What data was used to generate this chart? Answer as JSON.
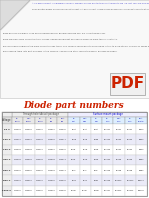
{
  "title": "Diode part numbers",
  "title_color": "#cc2200",
  "title_fontsize": 6.5,
  "header1": "Through hole (Axial) package",
  "header2": "Surface mount package",
  "header1_color": "#444444",
  "header2_color": "#0000cc",
  "voltages": [
    "50 V",
    "100 V",
    "200 V",
    "400 V",
    "600 V",
    "800 V",
    "1000 V"
  ],
  "volt_short": [
    "50V",
    "100V",
    "200V",
    "400V",
    "600V",
    "800V",
    "1000V"
  ],
  "col_labels_line1": [
    "1A,",
    "1.5A,",
    "3A,",
    "6A,",
    "10A,",
    "1A,",
    "1.5A,",
    "3A,",
    "1A,",
    "2.5A,",
    "3A,",
    "10A,"
  ],
  "col_labels_line2": [
    "DO-41",
    "DO-15",
    "DO-27",
    "R-6",
    "R-6",
    "SMA",
    "SMB",
    "SMC",
    "MELF",
    "MELF",
    "MELF",
    "D2-PAK"
  ],
  "rows": [
    [
      "1N4001",
      "1N5391",
      "1N5400",
      "1N4990",
      "1N3070",
      "RS1A",
      "RS2A",
      "RS3A",
      "LL4001",
      "RL1Z1",
      "RL3Z1",
      "MB1S"
    ],
    [
      "1N4002",
      "1N5392",
      "1N5401",
      "1N4991",
      "1N3071",
      "RS1B",
      "RS2B",
      "RS3B",
      "LL4002",
      "RL1Z2",
      "RL3Z2",
      "MB2S"
    ],
    [
      "1N4003",
      "1N5393",
      "1N5402",
      "1N4992",
      "1N3072",
      "RS1D",
      "RS2D",
      "RS3D",
      "LL4003",
      "RL1Z4",
      "RL3Z4",
      "MB4S"
    ],
    [
      "1N4004",
      "1N5394",
      "1N5404",
      "1N4993",
      "1N3073",
      "RS1G",
      "RS2G",
      "RS3G",
      "LL4004",
      "RL1Z6",
      "RL3Z6",
      "MB6S"
    ],
    [
      "1N4005",
      "1N5395",
      "1N5405",
      "1N4994",
      "1N3074",
      "RS1J",
      "RS2J",
      "RS3J",
      "LL4005",
      "RL1Z8",
      "RL3Z8",
      "MB8S"
    ],
    [
      "1N4006",
      "1N5396",
      "1N5406",
      "1N4995",
      "1N3075",
      "RS1K",
      "RS2K",
      "RS3K",
      "LL4006",
      "RL1Z10",
      "RL3Z10",
      "MB10S"
    ],
    [
      "1N4007",
      "1N5397",
      "1N5407",
      "1N4996",
      "1N3076",
      "RS1M",
      "RS2M",
      "RS3M",
      "LL4007",
      "RL1Z12",
      "RL3Z12",
      "MB12S"
    ]
  ],
  "background_color": "#ffffff",
  "text_color": "#555555",
  "text_lines": [
    "It is a basic element in a growing number of everyday devices due to its inherent reliability and low cost. They are ideal for use in AC adaptors for general purpose use e.g. conditioning VPM.",
    "Some positive diodes or diode for highest current: 3 A peak current. These diodes are especially designed to operate at a forward current 3 A.",
    "These devices are widely used and recommended for general purpose use, e.g. conditioning VPM.",
    "There are many form current rectifier diodes, having insufficient for oppose access of more than 0.7 Volts AC.",
    "The series were originally the more current diodes types. The 1N4001 series were to be followed in this to a few others. The DO-41 series were recommended as the standard for the 1N400x series and summarized in DO-41 and JEDEC, along with alternative standards range is i.e: 3 A, 600-600 series (R).",
    "The following table lists part numbers in the 1N400x, 1N540x and other requisite general purpose of diodes."
  ],
  "pdf_color": "#cc2200",
  "fold_size": 30
}
